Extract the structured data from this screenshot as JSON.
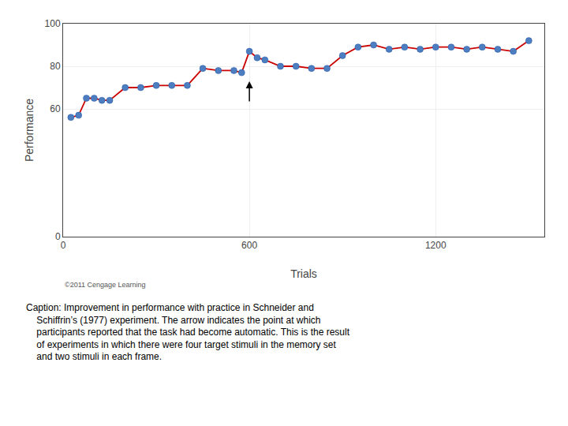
{
  "chart_data": {
    "type": "line",
    "x": [
      25,
      50,
      75,
      100,
      125,
      150,
      200,
      250,
      300,
      350,
      400,
      450,
      500,
      550,
      575,
      600,
      625,
      650,
      700,
      750,
      800,
      850,
      900,
      950,
      1000,
      1050,
      1100,
      1150,
      1200,
      1250,
      1300,
      1350,
      1400,
      1450,
      1500
    ],
    "series": [
      {
        "values": [
          56,
          57,
          65,
          65,
          64,
          64,
          70,
          70,
          71,
          71,
          71,
          79,
          78,
          78,
          77,
          87,
          84,
          83,
          80,
          80,
          79,
          79,
          85,
          89,
          90,
          88,
          89,
          88,
          89,
          89,
          88,
          89,
          88,
          87,
          92
        ],
        "color": "#cc0000",
        "marker": "circle",
        "colors": [
          "#4d7ebf",
          "#4d7ebf",
          "#4d7ebf",
          "#4d7ebf",
          "#4d7ebf",
          "#4d7ebf",
          "#4d7ebf",
          "#4d7ebf",
          "#4d7ebf",
          "#4d7ebf",
          "#4d7ebf",
          "#4d7ebf",
          "#4d7ebf",
          "#4d7ebf",
          "#4d7ebf",
          "#4d7ebf",
          "#4d7ebf",
          "#4d7ebf",
          "#4d7ebf",
          "#4d7ebf",
          "#4d7ebf",
          "#4d7ebf",
          "#4d7ebf",
          "#4d7ebf",
          "#4d7ebf",
          "#4d7ebf",
          "#4d7ebf",
          "#4d7ebf",
          "#4d7ebf",
          "#4d7ebf",
          "#4d7ebf",
          "#4d7ebf",
          "#4d7ebf",
          "#4d7ebf",
          "#4d7ebf"
        ]
      }
    ],
    "x_label": "Trials",
    "y_label": "Performance",
    "xlim": [
      0,
      1550
    ],
    "ylim": [
      0,
      100
    ],
    "xticks": [
      0,
      600,
      1200
    ],
    "yticks": [
      0,
      60,
      80,
      100
    ],
    "grid": true,
    "annotations": [
      {
        "x": 600,
        "y_from": 63,
        "y": 73,
        "arrow": true
      },
      {
        "text": "©2011 Cengage Learning"
      },
      {
        "text": "Caption: Improvement in performance with practice in Schneider and\n    Schiffrin’s (1977) experiment. The arrow indicates the point at which\n    participants reported that the task had become automatic. This is the result\n    of experiments in which there were four target stimuli in the memory set\n    and two stimuli in each frame."
      }
    ]
  }
}
